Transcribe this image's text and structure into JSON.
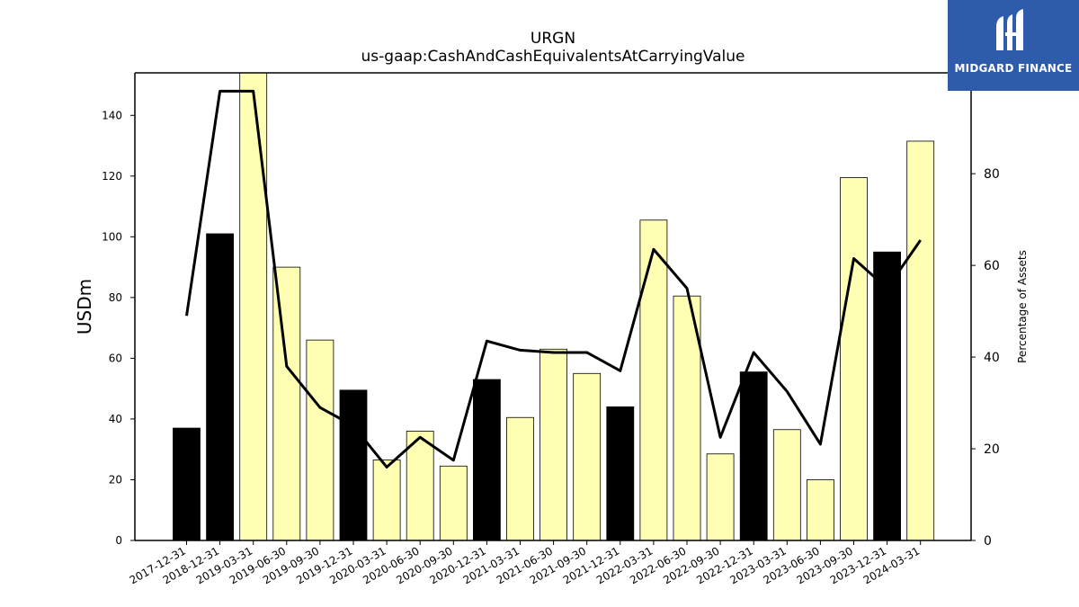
{
  "chart_data": {
    "type": "bar",
    "title": "URGN",
    "subtitle": "us-gaap:CashAndCashEquivalentsAtCarryingValue",
    "ylabel": "USDm",
    "y2label": "Percentage of Assets",
    "ylim": [
      0,
      154
    ],
    "y2lim": [
      0,
      102
    ],
    "yticks": [
      0,
      20,
      40,
      60,
      80,
      100,
      120,
      140
    ],
    "y2ticks": [
      0,
      20,
      40,
      60,
      80
    ],
    "categories": [
      "2017-12-31",
      "2018-12-31",
      "2019-03-31",
      "2019-06-30",
      "2019-09-30",
      "2019-12-31",
      "2020-03-31",
      "2020-06-30",
      "2020-09-30",
      "2020-12-31",
      "2021-03-31",
      "2021-06-30",
      "2021-09-30",
      "2021-12-31",
      "2022-03-31",
      "2022-06-30",
      "2022-09-30",
      "2022-12-31",
      "2023-03-31",
      "2023-06-30",
      "2023-09-30",
      "2023-12-31",
      "2024-03-31"
    ],
    "series": [
      {
        "kind": "bar",
        "values": [
          37,
          101,
          154,
          90,
          66,
          49.5,
          26.5,
          36,
          24.5,
          53,
          40.5,
          63,
          55,
          44,
          105.5,
          80.5,
          28.5,
          55.5,
          36.5,
          20,
          119.5,
          95,
          131.5
        ],
        "year_end": [
          true,
          true,
          false,
          false,
          false,
          true,
          false,
          false,
          false,
          true,
          false,
          false,
          false,
          true,
          false,
          false,
          false,
          true,
          false,
          false,
          false,
          true,
          false
        ]
      },
      {
        "kind": "line",
        "axis": "right",
        "values": [
          49,
          98,
          98,
          38,
          29,
          25,
          16,
          22.5,
          17.5,
          43.5,
          41.5,
          41,
          41,
          37,
          63.5,
          55,
          22.5,
          41,
          32.5,
          21,
          61.5,
          55,
          65.5
        ]
      }
    ],
    "colors": {
      "year_end_bar": "#000000",
      "quarter_bar": "#ffffb3",
      "line": "#000000"
    }
  },
  "logo": {
    "text": "MIDGARD FINANCE",
    "background": "#2f5bab",
    "icon": "midgard-logo-icon"
  }
}
